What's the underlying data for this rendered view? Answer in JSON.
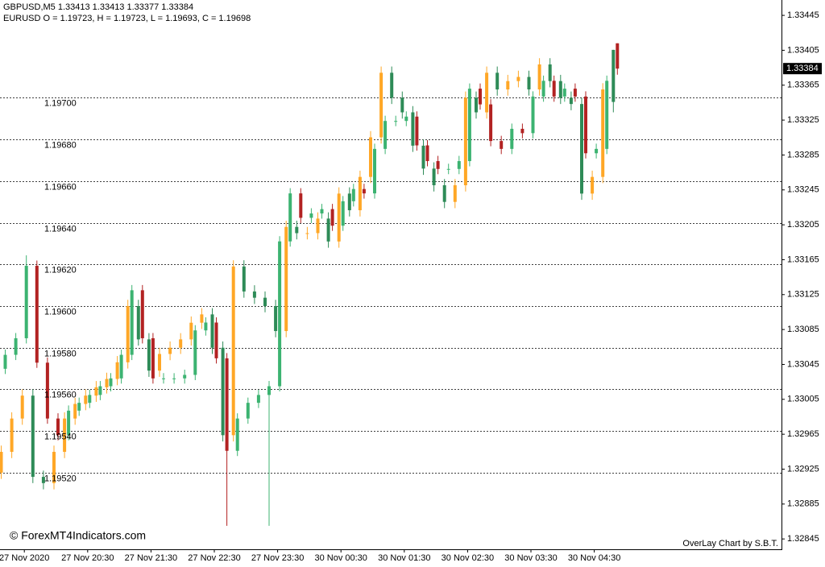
{
  "chart_data": {
    "type": "candlestick",
    "title": "GBPUSD,M5  1.33413 1.33413 1.33377 1.33384",
    "subtitle": "EURUSD O = 1.19723, H = 1.19723, L = 1.19693, C = 1.19698",
    "watermark": "© ForexMT4Indicators.com",
    "credit": "OverLay Chart by S.B.T.",
    "last_price": 1.33384,
    "grid": true,
    "categories": [
      null,
      null,
      "27 Nov 2020",
      null,
      null,
      null,
      null,
      null,
      "27 Nov 20:30",
      null,
      null,
      null,
      null,
      null,
      "27 Nov 21:30",
      null,
      null,
      null,
      null,
      null,
      "27 Nov 22:30",
      null,
      null,
      null,
      null,
      null,
      "27 Nov 23:30",
      null,
      null,
      null,
      null,
      null,
      "30 Nov 00:30",
      null,
      null,
      null,
      null,
      null,
      "30 Nov 01:30",
      null,
      null,
      null,
      null,
      null,
      "30 Nov 02:30",
      null,
      null,
      null,
      null,
      null,
      "30 Nov 03:30",
      null,
      null,
      null,
      null,
      null,
      "30 Nov 04:30",
      null,
      null
    ],
    "ylim": [
      1.32835,
      1.33458
    ],
    "yticks": [
      1.33445,
      1.33405,
      1.33365,
      1.33325,
      1.33285,
      1.33245,
      1.33205,
      1.33165,
      1.33125,
      1.33085,
      1.33045,
      1.33005,
      1.32965,
      1.32925,
      1.32885,
      1.32845
    ],
    "y2lim": [
      1.19484,
      1.19745
    ],
    "y2ticks": [
      {
        "value": 1.197,
        "label": "1.19700"
      },
      {
        "value": 1.1968,
        "label": "1.19680"
      },
      {
        "value": 1.1966,
        "label": "1.19660"
      },
      {
        "value": 1.1964,
        "label": "1.19640"
      },
      {
        "value": 1.1962,
        "label": "1.19620"
      },
      {
        "value": 1.196,
        "label": "1.19600"
      },
      {
        "value": 1.1958,
        "label": "1.19580"
      },
      {
        "value": 1.1956,
        "label": "1.19560"
      },
      {
        "value": 1.1954,
        "label": "1.19540"
      },
      {
        "value": 1.1952,
        "label": "1.19520"
      }
    ],
    "series": [
      {
        "axis": "y2",
        "up_color": "#ffa726",
        "down_color": "#2e8b57",
        "open": [
          1.1952,
          1.1953,
          1.19546,
          1.19557,
          1.19518,
          1.19515,
          1.1953,
          1.19546,
          1.19553,
          1.19557,
          1.19561,
          1.19565,
          1.19573,
          1.196,
          1.19584,
          1.19569,
          1.19577,
          1.1958,
          1.19584,
          1.19592,
          1.19596,
          1.1958,
          1.19538,
          1.19619,
          1.19607,
          1.19604,
          1.196,
          1.19588,
          1.19638,
          1.19635,
          1.19635,
          1.19642,
          1.19631,
          1.19654,
          1.19646,
          1.19662,
          1.19681,
          1.19712,
          1.197,
          1.19693,
          1.19677,
          1.19666,
          1.19658,
          1.1965,
          1.19658,
          1.197,
          1.19693,
          1.19712,
          1.19704,
          1.19708,
          1.1971,
          1.19704,
          1.19716,
          1.19708,
          1.197,
          1.19697,
          1.19654,
          1.19662,
          1.19723
        ],
        "high": [
          1.19533,
          1.19549,
          1.1956,
          1.1956,
          1.19521,
          1.19533,
          1.19549,
          1.19556,
          1.1956,
          1.19564,
          1.19568,
          1.19576,
          1.19603,
          1.19603,
          1.19587,
          1.1958,
          1.19583,
          1.19587,
          1.19595,
          1.19599,
          1.19599,
          1.19583,
          1.19622,
          1.19622,
          1.1961,
          1.19607,
          1.19603,
          1.19641,
          1.19641,
          1.19638,
          1.19645,
          1.19645,
          1.19657,
          1.19657,
          1.19665,
          1.19684,
          1.19715,
          1.19715,
          1.19703,
          1.19696,
          1.1968,
          1.19669,
          1.19661,
          1.19661,
          1.19703,
          1.19703,
          1.19715,
          1.19715,
          1.19711,
          1.19713,
          1.19713,
          1.19719,
          1.19719,
          1.19711,
          1.19703,
          1.197,
          1.19665,
          1.19707,
          1.19723
        ],
        "low": [
          1.19517,
          1.19527,
          1.19543,
          1.19515,
          1.19512,
          1.19512,
          1.19527,
          1.19543,
          1.1955,
          1.19554,
          1.19558,
          1.19562,
          1.1957,
          1.19581,
          1.19566,
          1.19566,
          1.19574,
          1.19577,
          1.19581,
          1.19589,
          1.19577,
          1.19535,
          1.19535,
          1.19604,
          1.19601,
          1.19597,
          1.19585,
          1.19585,
          1.19632,
          1.19632,
          1.19632,
          1.19628,
          1.19628,
          1.19643,
          1.19643,
          1.19659,
          1.19678,
          1.19697,
          1.1969,
          1.19674,
          1.19663,
          1.19655,
          1.19647,
          1.19647,
          1.19655,
          1.1969,
          1.1969,
          1.19701,
          1.19701,
          1.19705,
          1.19701,
          1.19701,
          1.19705,
          1.19697,
          1.19694,
          1.19651,
          1.19651,
          1.19659,
          1.19693
        ],
        "close": [
          1.1953,
          1.19546,
          1.19557,
          1.19518,
          1.19515,
          1.1953,
          1.19546,
          1.19553,
          1.19557,
          1.19561,
          1.19565,
          1.19573,
          1.196,
          1.19584,
          1.19569,
          1.19577,
          1.1958,
          1.19584,
          1.19592,
          1.19596,
          1.1958,
          1.19538,
          1.19619,
          1.19607,
          1.19604,
          1.196,
          1.19588,
          1.19638,
          1.19635,
          1.19635,
          1.19642,
          1.19631,
          1.19654,
          1.19646,
          1.19662,
          1.19681,
          1.19712,
          1.197,
          1.19693,
          1.19677,
          1.19666,
          1.19658,
          1.1965,
          1.19658,
          1.197,
          1.19693,
          1.19712,
          1.19704,
          1.19708,
          1.1971,
          1.19704,
          1.19716,
          1.19708,
          1.197,
          1.19697,
          1.19654,
          1.19662,
          1.19704,
          1.19698
        ]
      },
      {
        "axis": "y",
        "up_color": "#3cb371",
        "down_color": "#b22222",
        "open": [
          1.3304,
          1.33056,
          1.33075,
          1.33158,
          1.33047,
          1.32983,
          1.32964,
          1.32992,
          1.33001,
          1.3301,
          1.3302,
          1.33029,
          1.33056,
          1.3313,
          1.33075,
          1.33029,
          1.33029,
          1.33029,
          1.33033,
          1.33084,
          1.33093,
          1.33052,
          1.32946,
          1.32983,
          1.33001,
          1.3301,
          1.3302,
          1.33186,
          1.33241,
          1.33213,
          1.33218,
          1.33223,
          1.33204,
          1.33232,
          1.33246,
          1.33241,
          1.33292,
          1.33324,
          1.33324,
          1.33329,
          1.33296,
          1.33278,
          1.33269,
          1.33269,
          1.33278,
          1.33361,
          1.33343,
          1.33301,
          1.33292,
          1.33315,
          1.3331,
          1.33352,
          1.3337,
          1.33352,
          1.33361,
          1.33352,
          1.33287,
          1.33292,
          1.33413
        ],
        "high": [
          1.33062,
          1.33081,
          1.3317,
          1.33164,
          1.33053,
          1.32989,
          1.32998,
          1.33007,
          1.33016,
          1.33026,
          1.33035,
          1.33062,
          1.33136,
          1.33136,
          1.33081,
          1.33035,
          1.33035,
          1.33039,
          1.3309,
          1.33099,
          1.33099,
          1.33058,
          1.32989,
          1.33007,
          1.33016,
          1.33026,
          1.33192,
          1.33247,
          1.33247,
          1.33224,
          1.33229,
          1.33229,
          1.33238,
          1.33252,
          1.33252,
          1.33298,
          1.3333,
          1.3333,
          1.33335,
          1.33335,
          1.33302,
          1.33284,
          1.33275,
          1.33284,
          1.33367,
          1.33367,
          1.33349,
          1.33307,
          1.33321,
          1.33321,
          1.33358,
          1.33376,
          1.33376,
          1.33367,
          1.33367,
          1.33358,
          1.33298,
          1.33376,
          1.33413
        ],
        "low": [
          1.33034,
          1.3305,
          1.33069,
          1.33041,
          1.32977,
          1.32958,
          1.32958,
          1.32986,
          1.32995,
          1.33004,
          1.33014,
          1.33023,
          1.3305,
          1.33069,
          1.33023,
          1.33023,
          1.33023,
          1.33023,
          1.33027,
          1.33078,
          1.33046,
          1.3286,
          1.3294,
          1.32977,
          1.32995,
          1.3286,
          1.33014,
          1.3318,
          1.33207,
          1.33207,
          1.33212,
          1.33198,
          1.33198,
          1.33226,
          1.33235,
          1.33235,
          1.33286,
          1.33318,
          1.33318,
          1.3329,
          1.33272,
          1.33263,
          1.33263,
          1.33263,
          1.33272,
          1.33337,
          1.33295,
          1.33286,
          1.33286,
          1.33304,
          1.33304,
          1.33346,
          1.33346,
          1.33346,
          1.33346,
          1.33281,
          1.33281,
          1.33286,
          1.33377
        ],
        "close": [
          1.33056,
          1.33075,
          1.33158,
          1.33047,
          1.32983,
          1.32964,
          1.32992,
          1.33001,
          1.3301,
          1.3302,
          1.33029,
          1.33056,
          1.3313,
          1.33075,
          1.33029,
          1.33029,
          1.33029,
          1.33033,
          1.33084,
          1.33093,
          1.33052,
          1.32946,
          1.32983,
          1.33001,
          1.3301,
          1.3302,
          1.33186,
          1.33241,
          1.33213,
          1.33218,
          1.33223,
          1.33204,
          1.33232,
          1.33246,
          1.33241,
          1.33292,
          1.33324,
          1.33324,
          1.33329,
          1.33296,
          1.33278,
          1.33269,
          1.33269,
          1.33278,
          1.33361,
          1.33343,
          1.33301,
          1.33292,
          1.33315,
          1.3331,
          1.33352,
          1.3337,
          1.33352,
          1.33361,
          1.33352,
          1.33287,
          1.33292,
          1.3337,
          1.33384
        ]
      }
    ]
  }
}
